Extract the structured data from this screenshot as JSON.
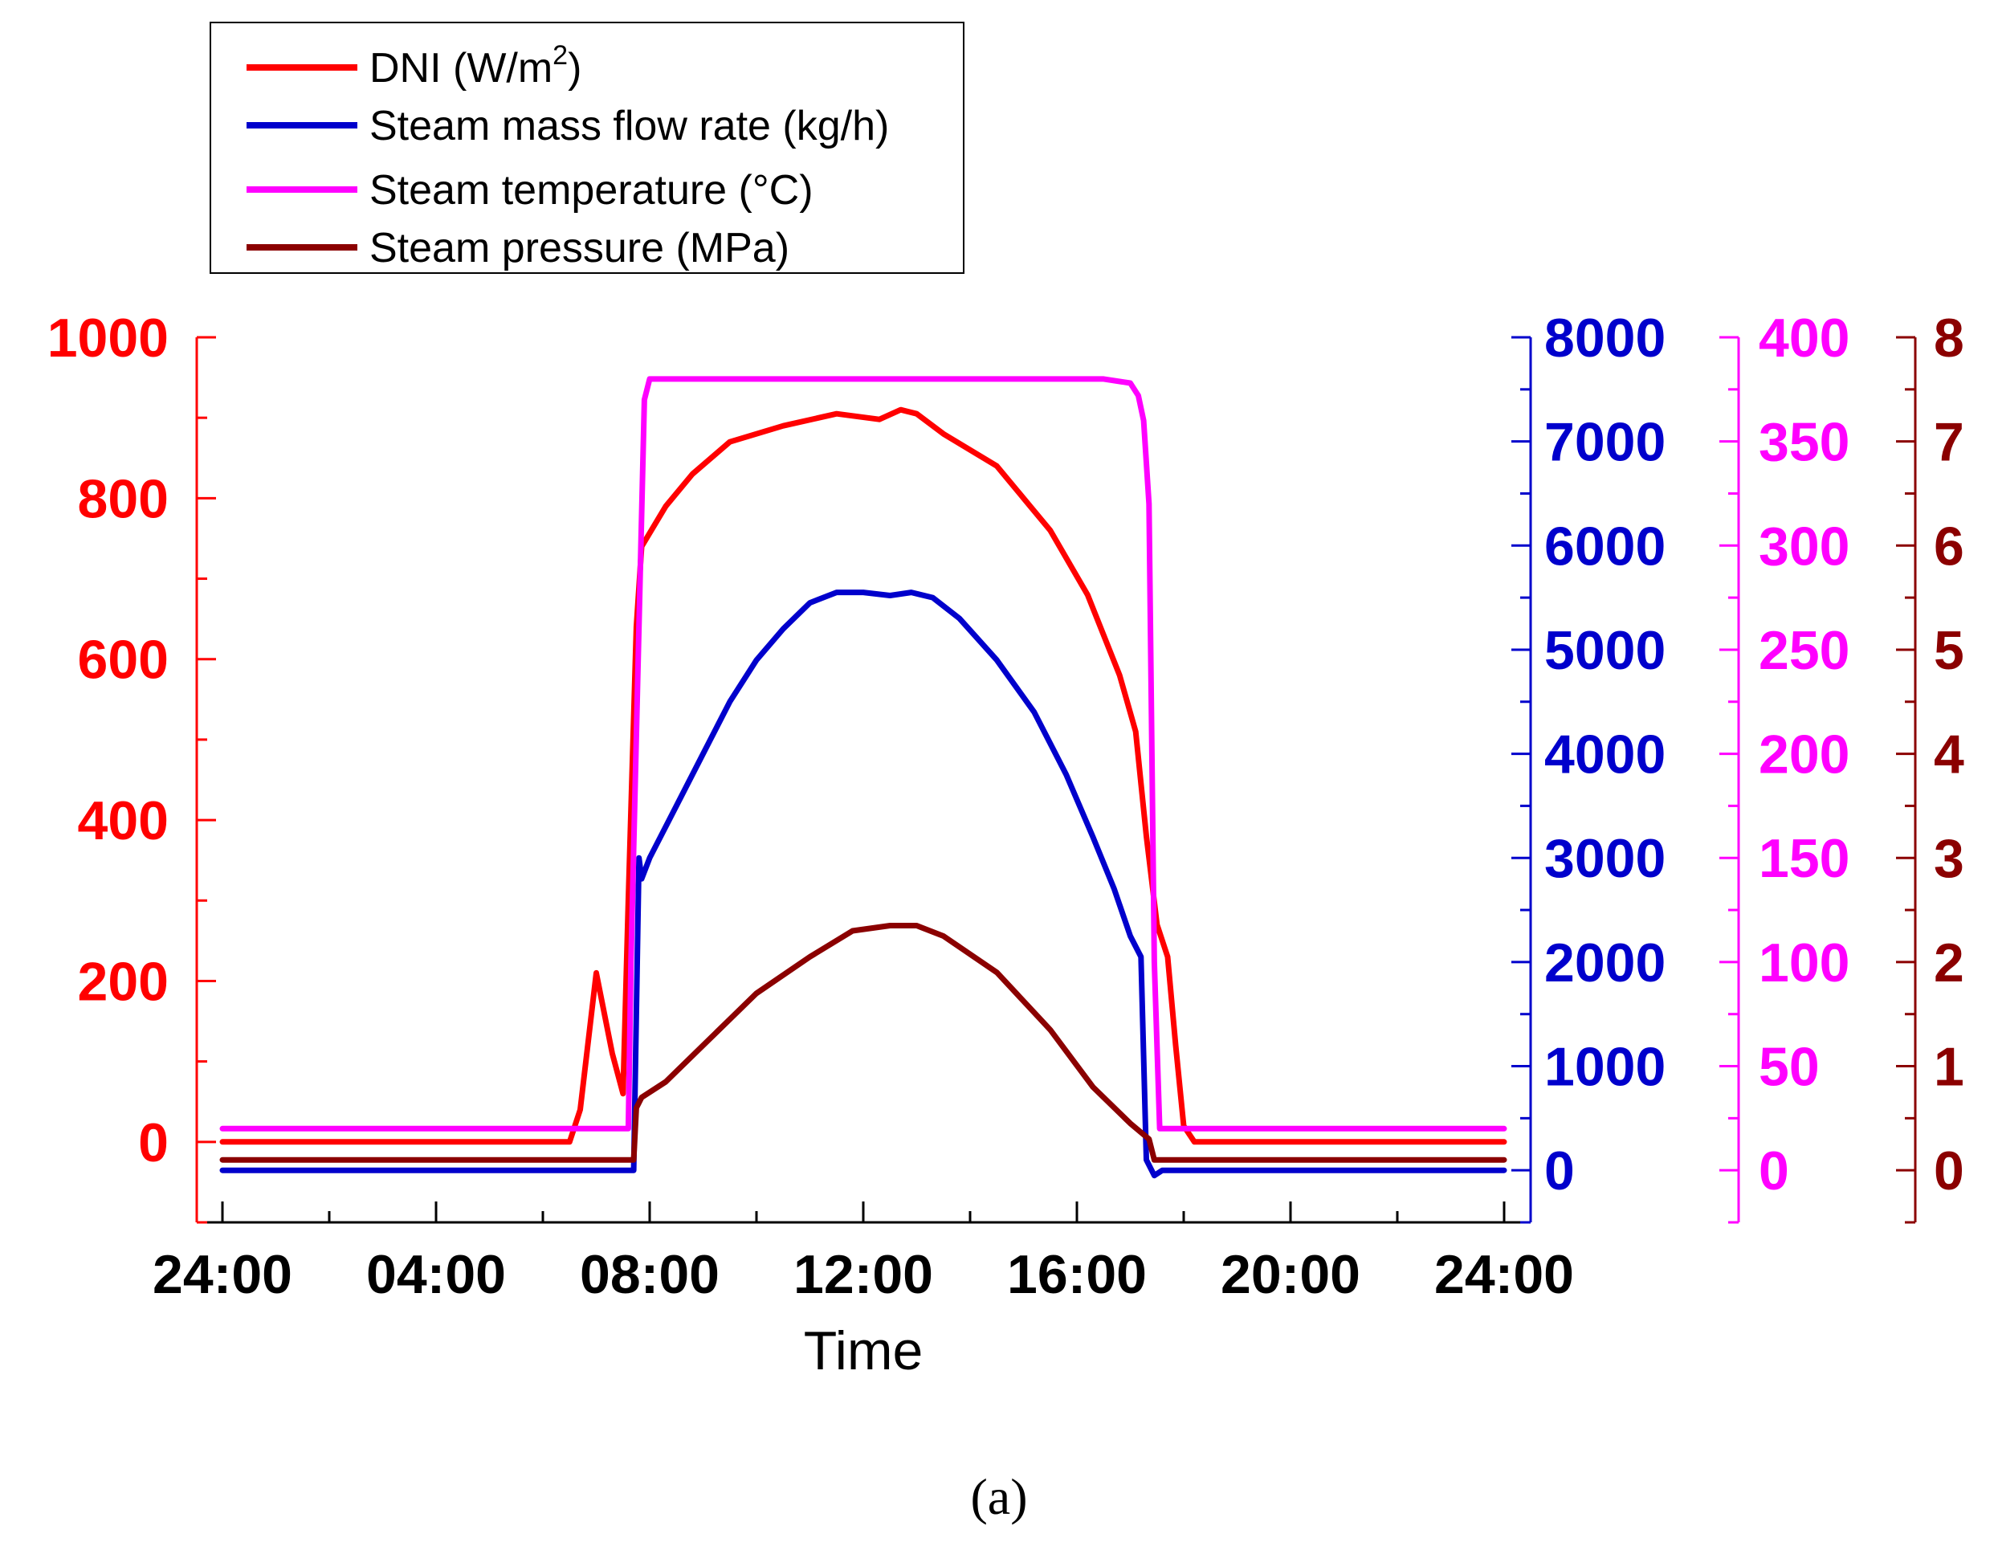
{
  "chart_data": {
    "type": "line",
    "title": "",
    "caption": "(a)",
    "xlabel": "Time",
    "x_ticks": [
      "24:00",
      "04:00",
      "08:00",
      "12:00",
      "16:00",
      "20:00",
      "24:00"
    ],
    "x_range_hours": [
      0,
      24
    ],
    "legend": {
      "placement": "top-left",
      "entries": [
        {
          "series": "dni",
          "label": "DNI (W/m",
          "superscript": "2",
          "suffix": ")"
        },
        {
          "series": "flow",
          "label": "Steam mass flow rate (kg/h)",
          "superscript": "",
          "suffix": ""
        },
        {
          "series": "temp",
          "label": "Steam temperature (°C)",
          "superscript": "",
          "suffix": ""
        },
        {
          "series": "pressure",
          "label": "Steam pressure (MPa)",
          "superscript": "",
          "suffix": ""
        }
      ]
    },
    "axes": {
      "dni": {
        "position": "left",
        "color": "#ff0000",
        "ylim": [
          -100,
          1000
        ],
        "major": [
          0,
          200,
          400,
          600,
          800,
          1000
        ],
        "minor_step": 100
      },
      "flow": {
        "position": "right-1",
        "color": "#0000cc",
        "ylim": [
          -500,
          8000
        ],
        "major": [
          0,
          1000,
          2000,
          3000,
          4000,
          5000,
          6000,
          7000,
          8000
        ],
        "minor_step": 500
      },
      "temp": {
        "position": "right-2",
        "color": "#ff00ff",
        "ylim": [
          -25,
          400
        ],
        "major": [
          0,
          50,
          100,
          150,
          200,
          250,
          300,
          350,
          400
        ],
        "minor_step": 25
      },
      "pressure": {
        "position": "right-3",
        "color": "#8b0000",
        "ylim": [
          -0.5,
          8
        ],
        "major": [
          0,
          1,
          2,
          3,
          4,
          5,
          6,
          7,
          8
        ],
        "minor_step": 0.5
      }
    },
    "series": [
      {
        "name": "DNI (W/m2)",
        "key": "dni",
        "axis": "dni",
        "color": "#ff0000",
        "x": [
          0,
          6.5,
          6.7,
          7.0,
          7.3,
          7.5,
          7.6,
          7.75,
          7.85,
          8.3,
          8.8,
          9.5,
          10.5,
          11.5,
          12.3,
          12.7,
          13.0,
          13.5,
          14.5,
          15.5,
          16.2,
          16.8,
          17.1,
          17.3,
          17.5,
          17.7,
          17.85,
          18.0,
          18.2,
          24
        ],
        "values": [
          0,
          0,
          40,
          210,
          110,
          60,
          300,
          640,
          740,
          790,
          830,
          870,
          890,
          905,
          898,
          910,
          905,
          880,
          840,
          760,
          680,
          580,
          510,
          380,
          270,
          230,
          120,
          20,
          0,
          0
        ]
      },
      {
        "name": "Steam mass flow rate (kg/h)",
        "key": "flow",
        "axis": "flow",
        "color": "#0000cc",
        "x": [
          0,
          7.7,
          7.8,
          7.85,
          8.0,
          8.5,
          9.0,
          9.5,
          10.0,
          10.5,
          11.0,
          11.5,
          12.0,
          12.5,
          12.9,
          13.3,
          13.8,
          14.5,
          15.2,
          15.8,
          16.3,
          16.7,
          17.0,
          17.2,
          17.3,
          17.45,
          17.6,
          24
        ],
        "values": [
          0,
          0,
          3000,
          2800,
          3000,
          3500,
          4000,
          4500,
          4900,
          5200,
          5450,
          5550,
          5550,
          5520,
          5550,
          5500,
          5300,
          4900,
          4400,
          3800,
          3200,
          2700,
          2250,
          2050,
          100,
          -50,
          0,
          0
        ]
      },
      {
        "name": "Steam temperature (°C)",
        "key": "temp",
        "axis": "temp",
        "color": "#ff00ff",
        "x": [
          0,
          7.6,
          7.65,
          7.9,
          8.0,
          10.0,
          12.0,
          13.5,
          15.5,
          16.5,
          17.0,
          17.15,
          17.25,
          17.35,
          17.45,
          17.55,
          24
        ],
        "values": [
          20,
          20,
          100,
          370,
          380,
          380,
          380,
          380,
          380,
          380,
          378,
          372,
          360,
          320,
          100,
          20,
          20
        ]
      },
      {
        "name": "Steam pressure (MPa)",
        "key": "pressure",
        "axis": "pressure",
        "color": "#8b0000",
        "x": [
          0,
          7.7,
          7.75,
          7.85,
          8.3,
          9.0,
          10.0,
          11.0,
          11.8,
          12.5,
          13.0,
          13.5,
          14.5,
          15.5,
          16.3,
          17.0,
          17.35,
          17.45,
          24
        ],
        "values": [
          0.1,
          0.1,
          0.6,
          0.7,
          0.85,
          1.2,
          1.7,
          2.05,
          2.3,
          2.35,
          2.35,
          2.25,
          1.9,
          1.35,
          0.8,
          0.45,
          0.3,
          0.1,
          0.1
        ]
      }
    ]
  }
}
